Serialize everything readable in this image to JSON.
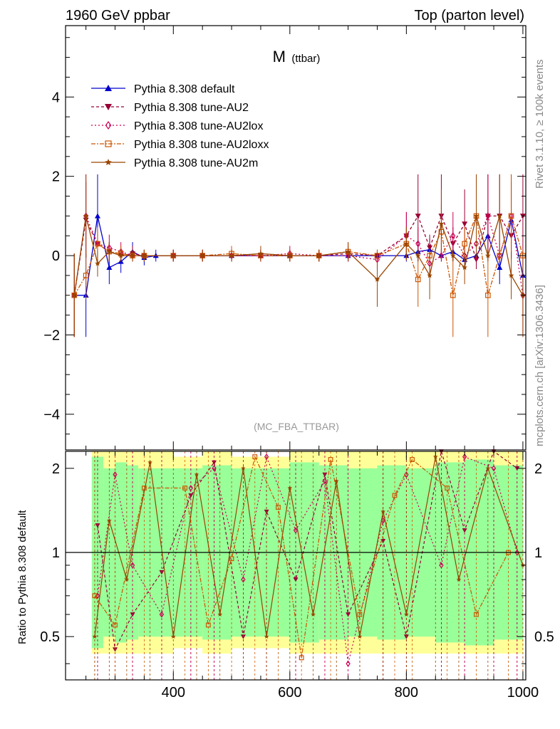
{
  "header": {
    "left": "1960 GeV ppbar",
    "right": "Top (parton level)"
  },
  "side_labels": {
    "rivet": "Rivet 3.1.10, ≥ 100k events",
    "mcplots": "mcplots.cern.ch [arXiv:1306.3436]"
  },
  "analysis_tag": "(MC_FBA_TTBAR)",
  "chart_data": [
    {
      "type": "line",
      "panel": "main",
      "title_main": "M",
      "title_sub": "(ttbar)",
      "xlabel": "",
      "ylabel": "",
      "xlim": [
        215,
        1005
      ],
      "ylim": [
        -4.9,
        5.8
      ],
      "y_ticks": [
        -4,
        -2,
        0,
        2,
        4
      ],
      "legend": "top-left",
      "grid": false,
      "series": [
        {
          "name": "Pythia 8.308 default",
          "color": "#0000cc",
          "marker": "triangle-up",
          "dash": "",
          "x": [
            230,
            250,
            270,
            290,
            310,
            330,
            350,
            370,
            400,
            450,
            500,
            550,
            600,
            650,
            700,
            750,
            800,
            820,
            840,
            860,
            880,
            900,
            920,
            940,
            960,
            980,
            1000
          ],
          "y": [
            -1.0,
            -1.0,
            1.0,
            -0.3,
            -0.15,
            0.1,
            -0.05,
            0.0,
            0.0,
            0.0,
            0.0,
            0.0,
            0.0,
            0.0,
            0.0,
            0.0,
            0.0,
            0.1,
            0.15,
            0.0,
            0.1,
            -0.1,
            0.0,
            0.5,
            -0.3,
            0.9,
            -0.5
          ]
        },
        {
          "name": "Pythia 8.308 tune-AU2",
          "color": "#990033",
          "marker": "triangle-down",
          "dash": "4,3",
          "x": [
            230,
            250,
            270,
            290,
            310,
            330,
            350,
            400,
            450,
            500,
            550,
            600,
            650,
            700,
            750,
            800,
            820,
            840,
            860,
            880,
            900,
            920,
            940,
            960,
            980,
            1000
          ],
          "y": [
            -1.0,
            0.9,
            0.3,
            0.1,
            0.0,
            0.05,
            0.0,
            0.0,
            0.0,
            0.0,
            0.0,
            0.0,
            0.0,
            0.05,
            0.0,
            0.5,
            1.0,
            0.2,
            1.0,
            0.3,
            0.8,
            -0.1,
            1.0,
            1.0,
            0.5,
            1.0
          ]
        },
        {
          "name": "Pythia 8.308 tune-AU2lox",
          "color": "#cc0055",
          "marker": "diamond",
          "dash": "2,3",
          "x": [
            230,
            250,
            270,
            290,
            310,
            330,
            350,
            400,
            450,
            500,
            550,
            600,
            650,
            700,
            750,
            800,
            820,
            840,
            860,
            880,
            900,
            920,
            940,
            960,
            980,
            1000
          ],
          "y": [
            -1.0,
            1.0,
            0.3,
            0.2,
            0.1,
            0.0,
            0.0,
            0.0,
            0.0,
            0.0,
            0.0,
            0.05,
            0.0,
            0.0,
            -0.1,
            0.5,
            0.3,
            -0.2,
            0.0,
            0.5,
            0.0,
            0.3,
            1.0,
            0.0,
            1.0,
            -1.0
          ]
        },
        {
          "name": "Pythia 8.308 tune-AU2loxx",
          "color": "#cc5500",
          "marker": "square",
          "dash": "6,2,2,2",
          "x": [
            230,
            250,
            270,
            290,
            310,
            330,
            350,
            400,
            450,
            500,
            550,
            600,
            650,
            700,
            750,
            800,
            820,
            840,
            860,
            880,
            900,
            920,
            940,
            960,
            980,
            1000
          ],
          "y": [
            -1.0,
            -0.5,
            0.3,
            0.1,
            0.05,
            0.0,
            0.0,
            0.0,
            0.0,
            0.05,
            0.0,
            0.0,
            0.0,
            0.1,
            0.0,
            0.3,
            -0.6,
            0.0,
            0.6,
            -1.0,
            0.3,
            1.0,
            -1.0,
            0.0,
            1.0,
            0.0
          ]
        },
        {
          "name": "Pythia 8.308 tune-AU2m",
          "color": "#994400",
          "marker": "star",
          "dash": "",
          "x": [
            230,
            250,
            270,
            290,
            310,
            330,
            350,
            400,
            450,
            500,
            550,
            600,
            650,
            700,
            750,
            800,
            820,
            840,
            860,
            880,
            900,
            920,
            940,
            960,
            980,
            1000
          ],
          "y": [
            -1.0,
            1.0,
            -0.2,
            0.1,
            0.0,
            0.0,
            0.0,
            0.0,
            0.0,
            0.0,
            0.05,
            0.0,
            0.0,
            0.1,
            -0.6,
            0.3,
            0.0,
            -0.5,
            0.8,
            0.0,
            -0.3,
            1.0,
            0.0,
            1.0,
            -0.5,
            -1.0
          ]
        }
      ]
    },
    {
      "type": "line",
      "panel": "ratio",
      "xlabel": "",
      "ylabel": "Ratio to Pythia 8.308 default",
      "xlim": [
        215,
        1005
      ],
      "ylim": [
        0.35,
        2.3
      ],
      "y_ticks": [
        0.5,
        1,
        2
      ],
      "x_ticks": [
        400,
        600,
        800,
        1000
      ],
      "reference": 1,
      "band_edges": [
        230,
        260,
        280,
        300,
        320,
        340,
        360,
        400,
        450,
        500,
        550,
        600,
        650,
        700,
        750,
        800,
        850,
        900,
        950,
        1000
      ],
      "band_inner": [
        0.35,
        2.2,
        2.0,
        2.1,
        2.05,
        2.0,
        2.0,
        2.0,
        2.05,
        2.0,
        2.0,
        2.1,
        2.05,
        2.0,
        2.05,
        2.0,
        2.1,
        2.15,
        2.05,
        2.0
      ],
      "band_outer": [
        0.35,
        2.3,
        2.3,
        2.3,
        2.3,
        2.3,
        2.3,
        2.2,
        2.3,
        2.2,
        2.2,
        2.3,
        2.3,
        2.3,
        2.3,
        2.3,
        2.3,
        2.3,
        2.3,
        2.3
      ],
      "series": [
        {
          "name": "Pythia 8.308 tune-AU2",
          "color": "#990033",
          "marker": "triangle-down",
          "dash": "4,3",
          "x": [
            270,
            300,
            330,
            380,
            430,
            470,
            520,
            560,
            610,
            660,
            700,
            760,
            800,
            860,
            900,
            950,
            990
          ],
          "y": [
            1.25,
            0.45,
            0.6,
            0.85,
            1.6,
            2.1,
            0.5,
            1.4,
            0.8,
            1.9,
            0.6,
            1.1,
            0.5,
            2.3,
            1.2,
            2.3,
            2.0
          ]
        },
        {
          "name": "Pythia 8.308 tune-AU2lox",
          "color": "#cc0055",
          "marker": "diamond",
          "dash": "2,3",
          "x": [
            270,
            300,
            330,
            380,
            430,
            470,
            520,
            560,
            610,
            660,
            700,
            760,
            800,
            860,
            900,
            950,
            990
          ],
          "y": [
            0.7,
            1.9,
            0.9,
            0.6,
            1.7,
            2.0,
            0.8,
            2.2,
            1.2,
            1.8,
            0.4,
            1.3,
            1.9,
            0.9,
            2.2,
            2.0,
            1.0
          ]
        },
        {
          "name": "Pythia 8.308 tune-AU2loxx",
          "color": "#cc5500",
          "marker": "square",
          "dash": "6,2,2,2",
          "x": [
            265,
            300,
            350,
            420,
            460,
            500,
            540,
            580,
            620,
            670,
            720,
            780,
            810,
            870,
            920,
            975
          ],
          "y": [
            0.7,
            0.55,
            1.7,
            1.7,
            0.55,
            0.95,
            2.2,
            1.45,
            0.42,
            2.15,
            0.6,
            1.6,
            2.15,
            1.7,
            0.6,
            1.0
          ]
        },
        {
          "name": "Pythia 8.308 tune-AU2m",
          "color": "#994400",
          "marker": "star",
          "dash": "",
          "x": [
            265,
            290,
            320,
            360,
            400,
            440,
            480,
            520,
            560,
            600,
            640,
            680,
            720,
            760,
            800,
            850,
            890,
            940,
            1000
          ],
          "y": [
            0.5,
            1.3,
            0.8,
            2.1,
            0.5,
            1.9,
            0.6,
            2.0,
            0.5,
            1.7,
            0.6,
            1.8,
            0.5,
            1.4,
            0.6,
            2.2,
            0.8,
            2.0,
            0.9
          ]
        }
      ]
    }
  ]
}
